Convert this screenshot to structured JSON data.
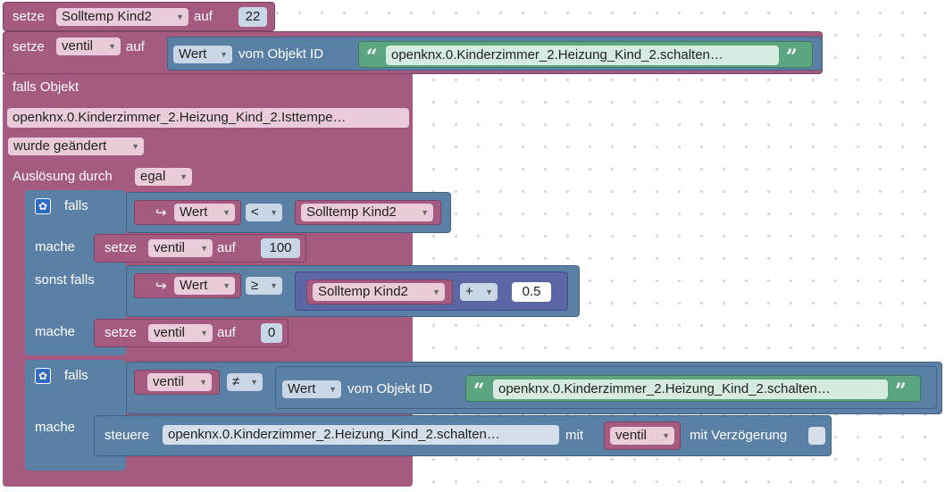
{
  "colors": {
    "variables": "#a55b80",
    "logic": "#5b80a5",
    "text": "#5ba580"
  },
  "row1": {
    "setze": "setze",
    "var": "Solltemp Kind2",
    "auf": "auf",
    "value": "22"
  },
  "row2": {
    "setze": "setze",
    "var": "ventil",
    "auf": "auf",
    "wert": "Wert",
    "vom_objekt": "vom Objekt ID",
    "object_id": "openknx.0.Kinderzimmer_2.Heizung_Kind_2.schalten…"
  },
  "trigger": {
    "title": "falls Objekt",
    "object": "openknx.0.Kinderzimmer_2.Heizung_Kind_2.Isttempe…",
    "event": "wurde geändert",
    "ausloesung": "Auslösung durch",
    "ausloesung_value": "egal"
  },
  "if1": {
    "falls": "falls",
    "wert": "Wert",
    "op1": "<",
    "cmp1": "Solltemp Kind2",
    "mache1": "mache",
    "set1": {
      "setze": "setze",
      "var": "ventil",
      "auf": "auf",
      "value": "100"
    },
    "sonst_falls": "sonst falls",
    "op2": "≥",
    "cmp2": "Solltemp Kind2",
    "plus": "+",
    "add": "0.5",
    "mache2": "mache",
    "set2": {
      "setze": "setze",
      "var": "ventil",
      "auf": "auf",
      "value": "0"
    }
  },
  "if2": {
    "falls": "falls",
    "var": "ventil",
    "op": "≠",
    "wert": "Wert",
    "vom_objekt": "vom Objekt ID",
    "object_id": "openknx.0.Kinderzimmer_2.Heizung_Kind_2.schalten…",
    "mache": "mache",
    "steuere": "steuere",
    "target": "openknx.0.Kinderzimmer_2.Heizung_Kind_2.schalten…",
    "mit": "mit",
    "mit_var": "ventil",
    "delay_label": "mit Verzögerung"
  }
}
